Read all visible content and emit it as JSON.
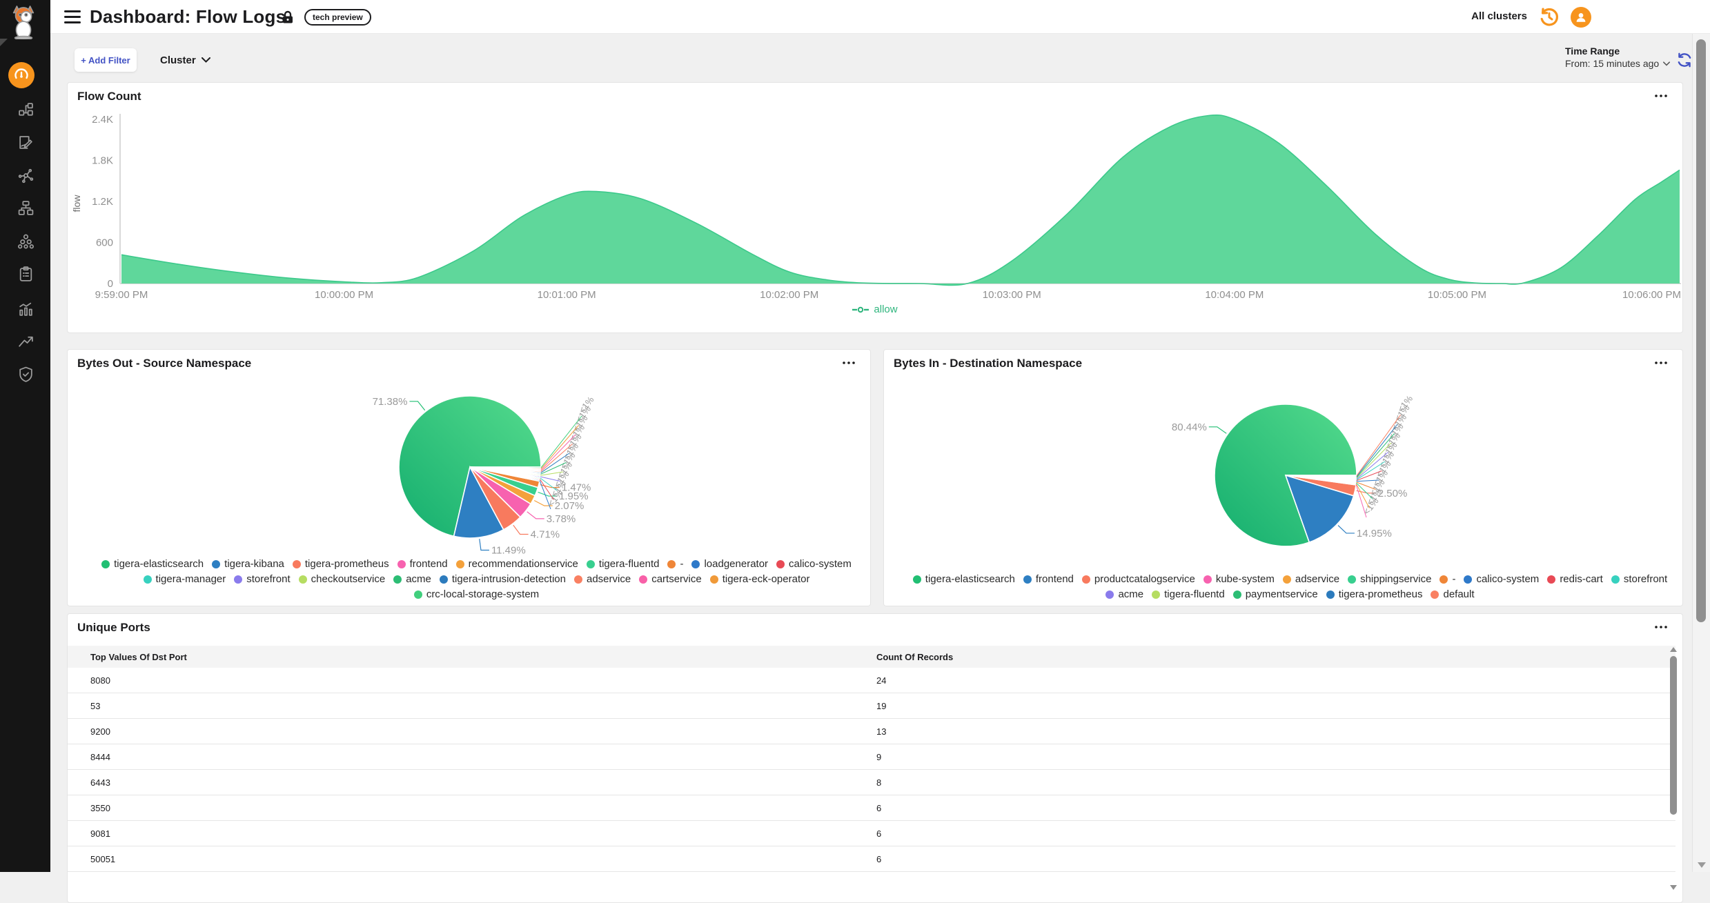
{
  "header": {
    "title": "Dashboard: Flow Logs",
    "badge": "tech preview",
    "all_clusters": "All clusters"
  },
  "sidebar": {
    "items": [
      "dashboard",
      "policies",
      "policy-recommendations",
      "service-graph",
      "network-topology",
      "clusters",
      "compliance-reports",
      "statistics",
      "trends",
      "threat-defense"
    ]
  },
  "filter_bar": {
    "add_filter": "+ Add Filter",
    "cluster_label": "Cluster",
    "time_range_label": "Time Range",
    "time_range_value": "From: 15 minutes ago"
  },
  "theme": {
    "accent_orange": "#f7941d",
    "accent_blue": "#4353c5",
    "chart_green_fill": "#5fd79b",
    "chart_green_line": "#3cc98b",
    "label_gray": "#9a9a9a"
  },
  "chart_data": [
    {
      "type": "area",
      "title": "Flow Count",
      "ylabel": "flow",
      "xlabel": "",
      "x_tick_labels": [
        "9:59:00 PM",
        "10:00:00 PM",
        "10:01:00 PM",
        "10:02:00 PM",
        "10:03:00 PM",
        "10:04:00 PM",
        "10:05:00 PM",
        "10:06:00 PM"
      ],
      "y_tick_labels": [
        "0",
        "600",
        "1.2K",
        "1.8K",
        "2.4K"
      ],
      "y_tick_values": [
        0,
        600,
        1200,
        1800,
        2400
      ],
      "ylim": [
        0,
        2400
      ],
      "xlim_seconds": [
        0,
        420
      ],
      "grid": false,
      "legend_position": "bottom",
      "legend": [
        {
          "name": "allow",
          "color": "#2eb57d"
        }
      ],
      "series": [
        {
          "name": "allow",
          "fill": "#5fd79b",
          "line": "#3cc98b",
          "points_t_v": [
            [
              0,
              420
            ],
            [
              15,
              285
            ],
            [
              30,
              170
            ],
            [
              45,
              80
            ],
            [
              60,
              25
            ],
            [
              70,
              12
            ],
            [
              80,
              90
            ],
            [
              95,
              480
            ],
            [
              108,
              980
            ],
            [
              120,
              1290
            ],
            [
              128,
              1345
            ],
            [
              140,
              1240
            ],
            [
              155,
              880
            ],
            [
              170,
              430
            ],
            [
              180,
              170
            ],
            [
              190,
              55
            ],
            [
              200,
              8
            ],
            [
              215,
              0
            ],
            [
              228,
              0
            ],
            [
              240,
              330
            ],
            [
              255,
              1020
            ],
            [
              270,
              1850
            ],
            [
              283,
              2300
            ],
            [
              293,
              2455
            ],
            [
              300,
              2400
            ],
            [
              312,
              2050
            ],
            [
              325,
              1420
            ],
            [
              338,
              720
            ],
            [
              350,
              230
            ],
            [
              358,
              60
            ],
            [
              365,
              8
            ],
            [
              372,
              0
            ],
            [
              378,
              10
            ],
            [
              388,
              230
            ],
            [
              398,
              700
            ],
            [
              408,
              1230
            ],
            [
              415,
              1480
            ],
            [
              420,
              1660
            ]
          ]
        }
      ]
    },
    {
      "type": "pie",
      "title": "Bytes Out - Source Namespace",
      "legend_position": "bottom",
      "slices": [
        {
          "name": "tigera-elasticsearch",
          "value": 71.38,
          "label": "71.38%",
          "color": "#21bf73"
        },
        {
          "name": "tigera-kibana",
          "value": 11.49,
          "label": "11.49%",
          "color": "#2e7fc2"
        },
        {
          "name": "tigera-prometheus",
          "value": 4.71,
          "label": "4.71%",
          "color": "#f87a5e"
        },
        {
          "name": "frontend",
          "value": 3.78,
          "label": "3.78%",
          "color": "#f762af"
        },
        {
          "name": "recommendationservice",
          "value": 2.07,
          "label": "2.07%",
          "color": "#f4a13b"
        },
        {
          "name": "tigera-fluentd",
          "value": 1.95,
          "label": "1.95%",
          "color": "#38cf8f"
        },
        {
          "name": "-",
          "value": 1.47,
          "label": "1.47%",
          "color": "#ef8638"
        },
        {
          "name": "loadgenerator",
          "value": 0.29,
          "label": "<1%",
          "color": "#2e79c9"
        },
        {
          "name": "calico-system",
          "value": 0.29,
          "label": "<1%",
          "color": "#e84a55"
        },
        {
          "name": "tigera-manager",
          "value": 0.29,
          "label": "<1%",
          "color": "#37d1bf"
        },
        {
          "name": "storefront",
          "value": 0.29,
          "label": "<1%",
          "color": "#8a7bec"
        },
        {
          "name": "checkoutservice",
          "value": 0.29,
          "label": "<1%",
          "color": "#b6dd62"
        },
        {
          "name": "acme",
          "value": 0.29,
          "label": "<1%",
          "color": "#2cbd74"
        },
        {
          "name": "tigera-intrusion-detection",
          "value": 0.29,
          "label": "<1%",
          "color": "#2c7bbd"
        },
        {
          "name": "adservice",
          "value": 0.29,
          "label": "<1%",
          "color": "#f98062"
        },
        {
          "name": "cartservice",
          "value": 0.29,
          "label": "<1%",
          "color": "#f860a8"
        },
        {
          "name": "tigera-eck-operator",
          "value": 0.29,
          "label": "<1%",
          "color": "#f09a39"
        },
        {
          "name": "crc-local-storage-system",
          "value": 0.29,
          "label": "<1%",
          "color": "#41cf7d"
        }
      ]
    },
    {
      "type": "pie",
      "title": "Bytes In - Destination Namespace",
      "legend_position": "bottom",
      "slices": [
        {
          "name": "tigera-elasticsearch",
          "value": 80.44,
          "label": "80.44%",
          "color": "#21bf73"
        },
        {
          "name": "frontend",
          "value": 14.95,
          "label": "14.95%",
          "color": "#2e7fc2"
        },
        {
          "name": "productcatalogservice",
          "value": 2.5,
          "label": "2.50%",
          "color": "#f87a5e"
        },
        {
          "name": "kube-system",
          "value": 0.18,
          "label": "<1%",
          "color": "#f762af"
        },
        {
          "name": "adservice",
          "value": 0.18,
          "label": "<1%",
          "color": "#f4a13b"
        },
        {
          "name": "shippingservice",
          "value": 0.18,
          "label": "<1%",
          "color": "#38cf8f"
        },
        {
          "name": "-",
          "value": 0.18,
          "label": "<1%",
          "color": "#ef8638"
        },
        {
          "name": "calico-system",
          "value": 0.18,
          "label": "<1%",
          "color": "#2e79c9"
        },
        {
          "name": "redis-cart",
          "value": 0.18,
          "label": "<1%",
          "color": "#e84a55"
        },
        {
          "name": "storefront",
          "value": 0.18,
          "label": "<1%",
          "color": "#37d1bf"
        },
        {
          "name": "acme",
          "value": 0.18,
          "label": "<1%",
          "color": "#8a7bec"
        },
        {
          "name": "tigera-fluentd",
          "value": 0.18,
          "label": "<1%",
          "color": "#b6dd62"
        },
        {
          "name": "paymentservice",
          "value": 0.18,
          "label": "<1%",
          "color": "#2cbd74"
        },
        {
          "name": "tigera-prometheus",
          "value": 0.18,
          "label": "<1%",
          "color": "#2c7bbd"
        },
        {
          "name": "default",
          "value": 0.18,
          "label": "<1%",
          "color": "#f98062"
        }
      ]
    },
    {
      "type": "table",
      "title": "Unique Ports",
      "columns": [
        "Top Values Of Dst Port",
        "Count Of Records"
      ],
      "rows": [
        [
          "8080",
          "24"
        ],
        [
          "53",
          "19"
        ],
        [
          "9200",
          "13"
        ],
        [
          "8444",
          "9"
        ],
        [
          "6443",
          "8"
        ],
        [
          "3550",
          "6"
        ],
        [
          "9081",
          "6"
        ],
        [
          "50051",
          "6"
        ]
      ]
    }
  ]
}
